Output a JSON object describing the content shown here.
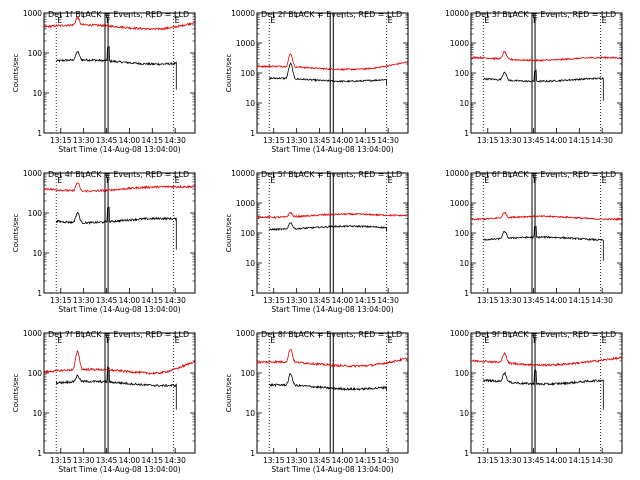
{
  "figure": {
    "panels_layout": "3x3 grid"
  },
  "chart_data": [
    {
      "type": "line",
      "title": "Det 1f BLACK = Events, RED = LLD",
      "xlabel": "Start Time (14-Aug-08 13:04:00)",
      "ylabel": "Counts/sec",
      "yscale": "log",
      "ylim": [
        1,
        1000
      ],
      "xlim_minutes": [
        0,
        99
      ],
      "x_tick_labels": [
        "13:15",
        "13:30",
        "13:45",
        "14:00",
        "14:15",
        "14:30"
      ],
      "y_tick_labels": [
        "1",
        "10",
        "100",
        "1000"
      ],
      "series": [
        {
          "name": "BLACK = Events",
          "color": "#000000",
          "start_min": 8,
          "end_min": 87,
          "base": 60,
          "peak": 100,
          "end_drop": 12,
          "saa_gap": true
        },
        {
          "name": "RED = LLD",
          "color": "#e00000",
          "start_min": 0,
          "end_min": 99,
          "base": 450,
          "peak": 720,
          "end_level": 580
        }
      ],
      "markers": {
        "solid_lines_min": [
          40,
          42
        ],
        "dotted_lines_min": [
          8,
          85
        ],
        "labels": [
          "E",
          "F",
          "E"
        ]
      }
    },
    {
      "type": "line",
      "title": "Det 2f BLACK = Events, RED = LLD",
      "xlabel": "Start Time (14-Aug-08 13:04:00)",
      "ylabel": "Counts/sec",
      "yscale": "log",
      "ylim": [
        1,
        10000
      ],
      "xlim_minutes": [
        0,
        99
      ],
      "x_tick_labels": [
        "13:15",
        "13:30",
        "13:45",
        "14:00",
        "14:15",
        "14:30"
      ],
      "y_tick_labels": [
        "1",
        "10",
        "100",
        "1000",
        "10000"
      ],
      "series": [
        {
          "name": "BLACK = Events",
          "color": "#000000",
          "start_min": 8,
          "end_min": 85,
          "base": 60,
          "peak": 200,
          "end_drop": 40,
          "saa_gap": false
        },
        {
          "name": "RED = LLD",
          "color": "#e00000",
          "start_min": 0,
          "end_min": 99,
          "base": 150,
          "peak": 420,
          "end_level": 220
        }
      ],
      "markers": {
        "solid_lines_min": [
          48,
          50
        ],
        "dotted_lines_min": [
          8,
          85
        ],
        "labels": [
          "E",
          "E"
        ]
      }
    },
    {
      "type": "line",
      "title": "Det 3f BLACK = Events, RED = LLD",
      "xlabel": "",
      "ylabel": "",
      "yscale": "log",
      "ylim": [
        1,
        10000
      ],
      "xlim_minutes": [
        0,
        99
      ],
      "x_tick_labels": [
        "13:15",
        "13:30",
        "13:45",
        "14:00",
        "14:15",
        "14:30"
      ],
      "y_tick_labels": [
        "1",
        "10",
        "100",
        "1000",
        "10000"
      ],
      "series": [
        {
          "name": "BLACK = Events",
          "color": "#000000",
          "start_min": 8,
          "end_min": 87,
          "base": 60,
          "peak": 110,
          "end_drop": 12,
          "saa_gap": true
        },
        {
          "name": "RED = LLD",
          "color": "#e00000",
          "start_min": 0,
          "end_min": 99,
          "base": 300,
          "peak": 520,
          "end_level": 280
        }
      ],
      "markers": {
        "solid_lines_min": [
          40,
          42
        ],
        "dotted_lines_min": [
          8,
          85
        ],
        "labels": [
          "E",
          "F",
          "E"
        ]
      }
    },
    {
      "type": "line",
      "title": "Det 4f BLACK = Events, RED = LLD",
      "xlabel": "Start Time (14-Aug-08 13:04:00)",
      "ylabel": "Counts/sec",
      "yscale": "log",
      "ylim": [
        1,
        1000
      ],
      "xlim_minutes": [
        0,
        99
      ],
      "x_tick_labels": [
        "13:15",
        "13:30",
        "13:45",
        "14:00",
        "14:15",
        "14:30"
      ],
      "y_tick_labels": [
        "1",
        "10",
        "100",
        "1000"
      ],
      "series": [
        {
          "name": "BLACK = Events",
          "color": "#000000",
          "start_min": 8,
          "end_min": 87,
          "base": 65,
          "peak": 110,
          "end_drop": 12,
          "saa_gap": true
        },
        {
          "name": "RED = LLD",
          "color": "#e00000",
          "start_min": 0,
          "end_min": 99,
          "base": 400,
          "peak": 620,
          "end_level": 450
        }
      ],
      "markers": {
        "solid_lines_min": [
          40,
          42
        ],
        "dotted_lines_min": [
          8,
          85
        ],
        "labels": [
          "E",
          "F",
          "E"
        ]
      }
    },
    {
      "type": "line",
      "title": "Det 5f BLACK = Events, RED = LLD",
      "xlabel": "Start Time (14-Aug-08 13:04:00)",
      "ylabel": "Counts/sec",
      "yscale": "log",
      "ylim": [
        1,
        10000
      ],
      "xlim_minutes": [
        0,
        99
      ],
      "x_tick_labels": [
        "13:15",
        "13:30",
        "13:45",
        "14:00",
        "14:15",
        "14:30"
      ],
      "y_tick_labels": [
        "1",
        "10",
        "100",
        "1000",
        "10000"
      ],
      "series": [
        {
          "name": "BLACK = Events",
          "color": "#000000",
          "start_min": 8,
          "end_min": 85,
          "base": 150,
          "peak": 240,
          "end_drop": 110,
          "saa_gap": false
        },
        {
          "name": "RED = LLD",
          "color": "#e00000",
          "start_min": 0,
          "end_min": 99,
          "base": 380,
          "peak": 520,
          "end_level": 420
        }
      ],
      "markers": {
        "solid_lines_min": [
          48,
          50
        ],
        "dotted_lines_min": [
          8,
          85
        ],
        "labels": [
          "E",
          "E"
        ]
      }
    },
    {
      "type": "line",
      "title": "Det 6f BLACK = Events, RED = LLD",
      "xlabel": "",
      "ylabel": "",
      "yscale": "log",
      "ylim": [
        1,
        10000
      ],
      "xlim_minutes": [
        0,
        99
      ],
      "x_tick_labels": [
        "13:15",
        "13:30",
        "13:45",
        "14:00",
        "14:15",
        "14:30"
      ],
      "y_tick_labels": [
        "1",
        "10",
        "100",
        "1000",
        "10000"
      ],
      "series": [
        {
          "name": "BLACK = Events",
          "color": "#000000",
          "start_min": 8,
          "end_min": 87,
          "base": 65,
          "peak": 110,
          "end_drop": 12,
          "saa_gap": true
        },
        {
          "name": "RED = LLD",
          "color": "#e00000",
          "start_min": 0,
          "end_min": 99,
          "base": 320,
          "peak": 480,
          "end_level": 330
        }
      ],
      "markers": {
        "solid_lines_min": [
          40,
          42
        ],
        "dotted_lines_min": [
          8,
          85
        ],
        "labels": [
          "E",
          "F",
          "E"
        ]
      }
    },
    {
      "type": "line",
      "title": "Det 7f BLACK = Events, RED = LLD",
      "xlabel": "Start Time (14-Aug-08 13:04:00)",
      "ylabel": "Counts/sec",
      "yscale": "log",
      "ylim": [
        1,
        1000
      ],
      "xlim_minutes": [
        0,
        99
      ],
      "x_tick_labels": [
        "13:15",
        "13:30",
        "13:45",
        "14:00",
        "14:15",
        "14:30"
      ],
      "y_tick_labels": [
        "1",
        "10",
        "100",
        "1000"
      ],
      "series": [
        {
          "name": "BLACK = Events",
          "color": "#000000",
          "start_min": 8,
          "end_min": 87,
          "base": 55,
          "peak": 80,
          "end_drop": 12,
          "saa_gap": true
        },
        {
          "name": "RED = LLD",
          "color": "#e00000",
          "start_min": 0,
          "end_min": 99,
          "base": 110,
          "peak": 330,
          "end_level": 200
        }
      ],
      "markers": {
        "solid_lines_min": [
          40,
          42
        ],
        "dotted_lines_min": [
          8,
          85
        ],
        "labels": [
          "E",
          "F",
          "E"
        ]
      }
    },
    {
      "type": "line",
      "title": "Det 8f BLACK = Events, RED = LLD",
      "xlabel": "Start Time (14-Aug-08 13:04:00)",
      "ylabel": "Counts/sec",
      "yscale": "log",
      "ylim": [
        1,
        1000
      ],
      "xlim_minutes": [
        0,
        99
      ],
      "x_tick_labels": [
        "13:15",
        "13:30",
        "13:45",
        "14:00",
        "14:15",
        "14:30"
      ],
      "y_tick_labels": [
        "1",
        "10",
        "100",
        "1000"
      ],
      "series": [
        {
          "name": "BLACK = Events",
          "color": "#000000",
          "start_min": 8,
          "end_min": 85,
          "base": 45,
          "peak": 90,
          "end_drop": 35,
          "saa_gap": false
        },
        {
          "name": "RED = LLD",
          "color": "#e00000",
          "start_min": 0,
          "end_min": 99,
          "base": 170,
          "peak": 380,
          "end_level": 220
        }
      ],
      "markers": {
        "solid_lines_min": [
          48,
          50
        ],
        "dotted_lines_min": [
          8,
          85
        ],
        "labels": [
          "E",
          "E"
        ]
      }
    },
    {
      "type": "line",
      "title": "Det 9f BLACK = Events, RED = LLD",
      "xlabel": "",
      "ylabel": "",
      "yscale": "log",
      "ylim": [
        1,
        1000
      ],
      "xlim_minutes": [
        0,
        99
      ],
      "x_tick_labels": [
        "13:15",
        "13:30",
        "13:45",
        "14:00",
        "14:15",
        "14:30"
      ],
      "y_tick_labels": [
        "1",
        "10",
        "100",
        "1000"
      ],
      "series": [
        {
          "name": "BLACK = Events",
          "color": "#000000",
          "start_min": 8,
          "end_min": 87,
          "base": 60,
          "peak": 100,
          "end_drop": 12,
          "saa_gap": true
        },
        {
          "name": "RED = LLD",
          "color": "#e00000",
          "start_min": 0,
          "end_min": 99,
          "base": 180,
          "peak": 320,
          "end_level": 220
        }
      ],
      "markers": {
        "solid_lines_min": [
          40,
          42
        ],
        "dotted_lines_min": [
          8,
          85
        ],
        "labels": [
          "E",
          "F",
          "E"
        ]
      }
    }
  ]
}
